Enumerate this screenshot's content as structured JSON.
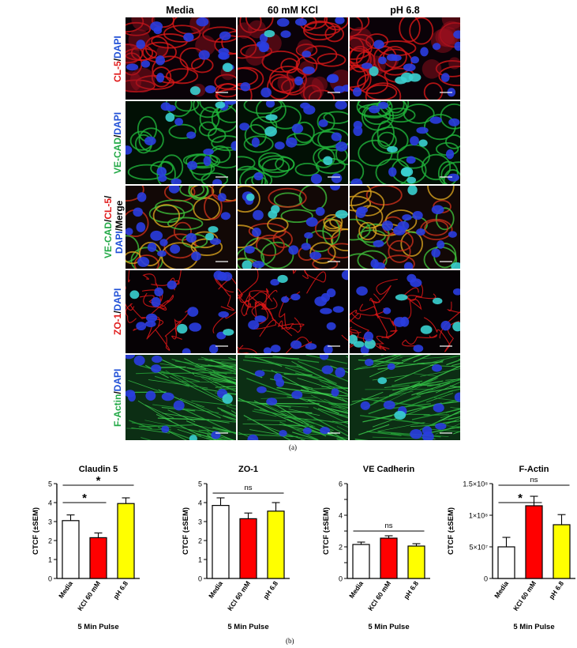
{
  "figure": {
    "columns": [
      "Media",
      "60 mM KCl",
      "pH 6.8"
    ],
    "rows": [
      {
        "id": "cl5",
        "parts": [
          {
            "text": "CL-5",
            "color": "#e01a1a"
          },
          {
            "text": "/",
            "color": "#000000"
          },
          {
            "text": "DAPI",
            "color": "#1f4fd6"
          }
        ]
      },
      {
        "id": "vecad",
        "parts": [
          {
            "text": "VE-CAD",
            "color": "#21a845"
          },
          {
            "text": "/",
            "color": "#000000"
          },
          {
            "text": "DAPI",
            "color": "#1f4fd6"
          }
        ]
      },
      {
        "id": "merge",
        "parts": [
          {
            "text": "VE-CAD",
            "color": "#21a845"
          },
          {
            "text": "/",
            "color": "#000000"
          },
          {
            "text": "CL-5",
            "color": "#e01a1a"
          },
          {
            "text": "/",
            "color": "#000000"
          }
        ],
        "parts2": [
          {
            "text": "DAPI",
            "color": "#1f4fd6"
          },
          {
            "text": "/Merge",
            "color": "#000000"
          }
        ]
      },
      {
        "id": "zo1",
        "parts": [
          {
            "text": "ZO-1",
            "color": "#e01a1a"
          },
          {
            "text": "/",
            "color": "#000000"
          },
          {
            "text": "DAPI",
            "color": "#1f4fd6"
          }
        ]
      },
      {
        "id": "factin",
        "parts": [
          {
            "text": "F-Actin",
            "color": "#21a845"
          },
          {
            "text": "/",
            "color": "#000000"
          },
          {
            "text": "DAPI",
            "color": "#1f4fd6"
          }
        ]
      }
    ],
    "label_a": "(a)",
    "label_b": "(b)"
  },
  "chart_data": [
    {
      "type": "bar",
      "title": "Claudin 5",
      "ylabel": "CTCF (±SEM)",
      "xlabel": "5 Min Pulse",
      "categories": [
        "Media",
        "KCl 60 mM",
        "pH 6.8"
      ],
      "values": [
        3.05,
        2.15,
        3.95
      ],
      "errors": [
        0.3,
        0.25,
        0.3
      ],
      "colors": [
        "#ffffff",
        "#ff0000",
        "#ffff00"
      ],
      "ylim": [
        0,
        5
      ],
      "yticks": [
        "0",
        "1",
        "2",
        "3",
        "4",
        "5"
      ],
      "annotations": [
        {
          "from": 0,
          "to": 1,
          "text": "*"
        },
        {
          "from": 0,
          "to": 2,
          "text": "*"
        }
      ]
    },
    {
      "type": "bar",
      "title": "ZO-1",
      "ylabel": "CTCF (±SEM)",
      "xlabel": "5 Min Pulse",
      "categories": [
        "Media",
        "KCl 60 mM",
        "pH 6.8"
      ],
      "values": [
        3.85,
        3.15,
        3.55
      ],
      "errors": [
        0.4,
        0.3,
        0.45
      ],
      "colors": [
        "#ffffff",
        "#ff0000",
        "#ffff00"
      ],
      "ylim": [
        0,
        5
      ],
      "yticks": [
        "0",
        "1",
        "2",
        "3",
        "4",
        "5"
      ],
      "annotations": [
        {
          "from": 0,
          "to": 2,
          "text": "ns"
        }
      ]
    },
    {
      "type": "bar",
      "title": "VE  Cadherin",
      "ylabel": "CTCF (±SEM)",
      "xlabel": "5 Min Pulse",
      "categories": [
        "Media",
        "KCl 60 mM",
        "pH 6.8"
      ],
      "values": [
        2.15,
        2.55,
        2.05
      ],
      "errors": [
        0.15,
        0.15,
        0.15
      ],
      "colors": [
        "#ffffff",
        "#ff0000",
        "#ffff00"
      ],
      "ylim": [
        0,
        6
      ],
      "yticks": [
        "0",
        "",
        "2",
        "",
        "4",
        "",
        "6"
      ],
      "annotations": [
        {
          "from": 0,
          "to": 2,
          "text": "ns"
        }
      ]
    },
    {
      "type": "bar",
      "title": "F-Actin",
      "ylabel": "CTCF (±SEM)",
      "xlabel": "5 Min Pulse",
      "categories": [
        "Media",
        "KCl 60 mM",
        "pH 6.8"
      ],
      "values": [
        50000000,
        115000000,
        85000000
      ],
      "errors": [
        15000000,
        15000000,
        16000000
      ],
      "colors": [
        "#ffffff",
        "#ff0000",
        "#ffff00"
      ],
      "ylim": [
        0,
        150000000
      ],
      "yticks": [
        "0",
        "5×10⁷",
        "1×10⁸",
        "1.5×10⁸"
      ],
      "yticks_values": [
        0,
        50000000,
        100000000,
        150000000
      ],
      "annotations": [
        {
          "from": 0,
          "to": 1,
          "text": "*"
        },
        {
          "from": 0,
          "to": 2,
          "text": "ns"
        }
      ]
    }
  ]
}
